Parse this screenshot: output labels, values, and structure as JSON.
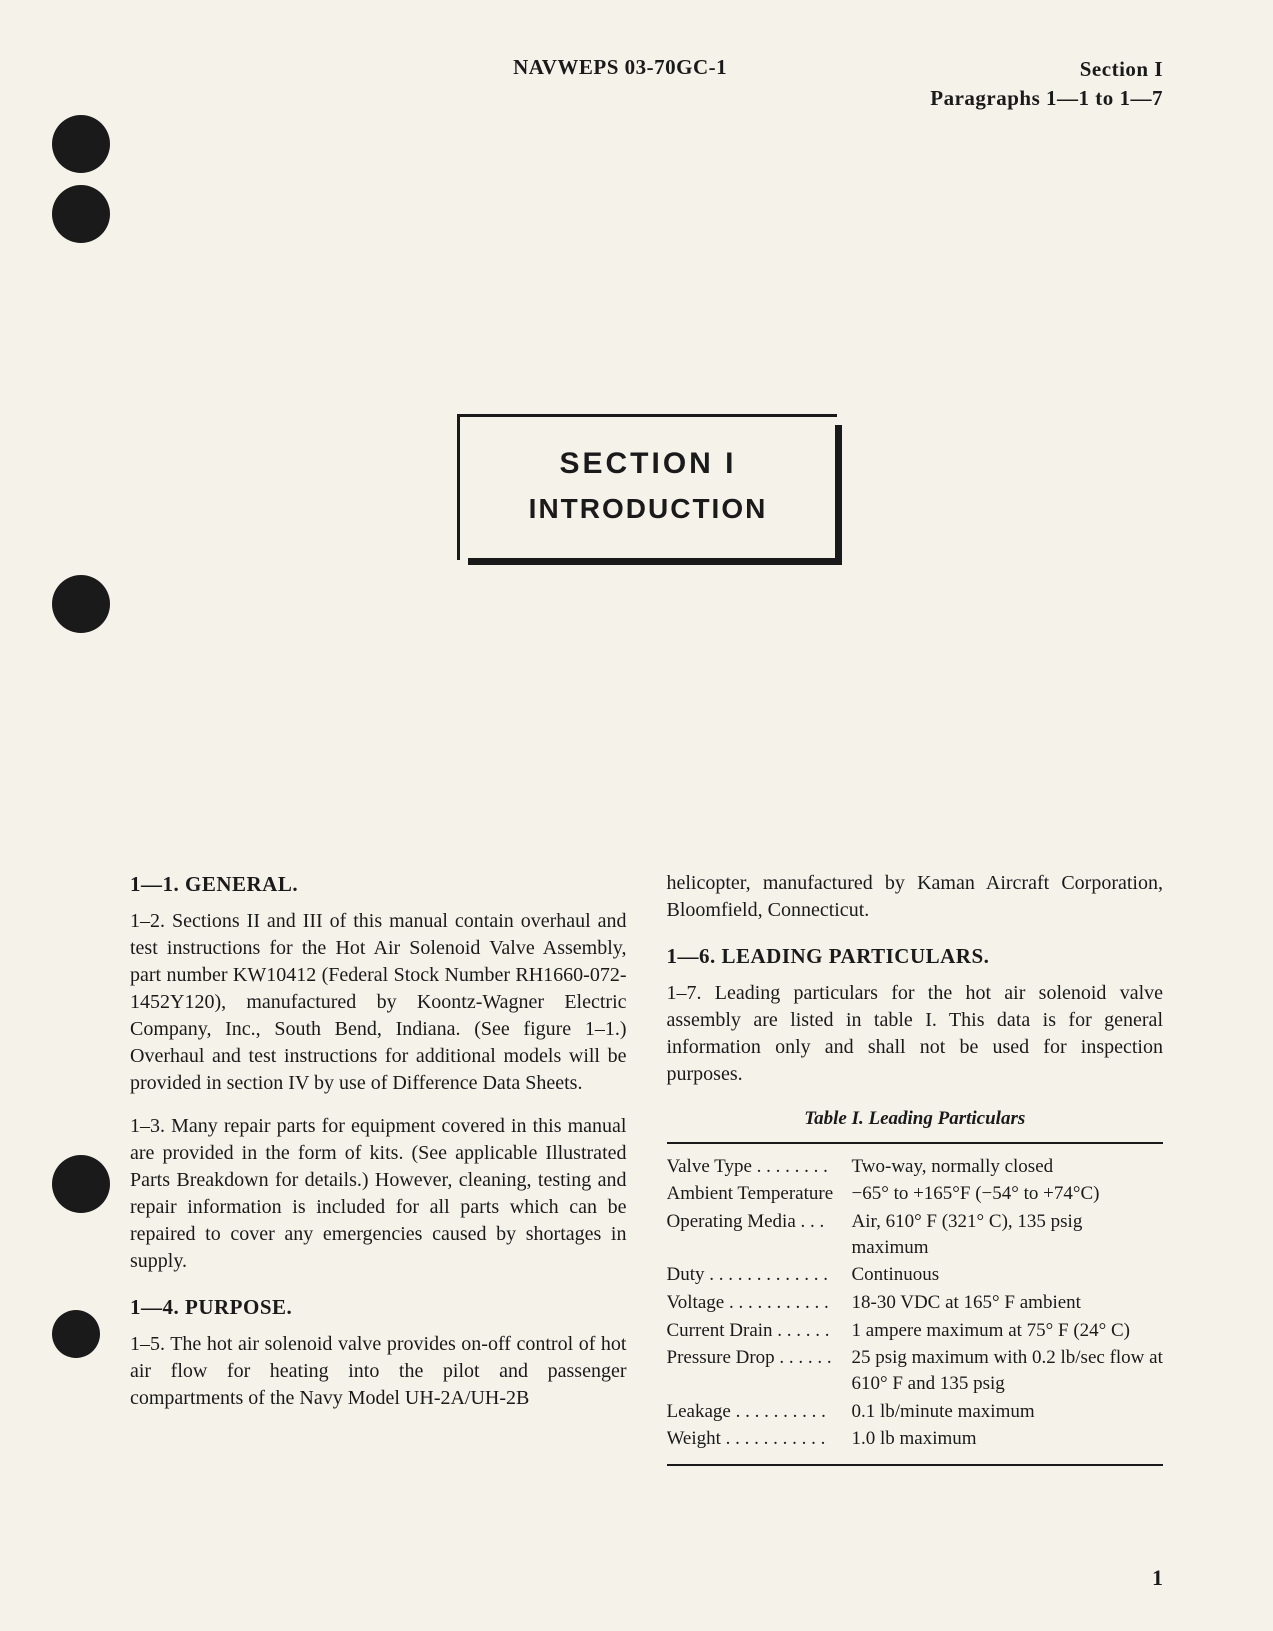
{
  "header": {
    "doc_number": "NAVWEPS 03-70GC-1",
    "section": "Section I",
    "paragraphs": "Paragraphs 1—1 to 1—7"
  },
  "title": {
    "line1": "SECTION I",
    "line2": "INTRODUCTION"
  },
  "col_left": {
    "h1": "1—1. GENERAL.",
    "p1": "1–2. Sections II and III of this manual contain overhaul and test instructions for the Hot Air Solenoid Valve Assembly, part number KW10412 (Federal Stock Number RH1660-072-1452Y120), manufactured by Koontz-Wagner Electric Company, Inc., South Bend, Indiana. (See figure 1–1.) Overhaul and test instructions for additional models will be provided in section IV by use of Difference Data Sheets.",
    "p2": "1–3. Many repair parts for equipment covered in this manual are provided in the form of kits. (See applicable Illustrated Parts Breakdown for details.) However, cleaning, testing and repair information is included for all parts which can be repaired to cover any emergencies caused by shortages in supply.",
    "h2": "1—4. PURPOSE.",
    "p3": "1–5. The hot air solenoid valve provides on-off control of hot air flow for heating into the pilot and passenger compartments of the Navy Model UH-2A/UH-2B"
  },
  "col_right": {
    "p1": "helicopter, manufactured by Kaman Aircraft Corporation, Bloomfield, Connecticut.",
    "h1": "1—6. LEADING PARTICULARS.",
    "p2": "1–7. Leading particulars for the hot air solenoid valve assembly are listed in table I. This data is for general information only and shall not be used for inspection purposes.",
    "table_caption": "Table I.   Leading Particulars",
    "table": {
      "rows": [
        {
          "label": "Valve Type . . . . . . . .",
          "value": "Two-way, normally closed"
        },
        {
          "label": "Ambient Temperature",
          "value": "−65° to +165°F (−54° to +74°C)"
        },
        {
          "label": "Operating Media . . .",
          "value": "Air, 610° F (321° C), 135 psig maximum"
        },
        {
          "label": "Duty . . . . . . . . . . . . .",
          "value": "Continuous"
        },
        {
          "label": "Voltage . . . . . . . . . . .",
          "value": "18-30 VDC at 165° F ambient"
        },
        {
          "label": "Current Drain . . . . . .",
          "value": "1 ampere maximum at 75° F (24° C)"
        },
        {
          "label": "Pressure Drop . . . . . .",
          "value": "25 psig maximum with 0.2 lb/sec flow at 610° F and 135 psig"
        },
        {
          "label": "Leakage . . . . . . . . . .",
          "value": "0.1 lb/minute maximum"
        },
        {
          "label": "Weight . . . . . . . . . . .",
          "value": "1.0 lb maximum"
        }
      ]
    }
  },
  "page_number": "1"
}
